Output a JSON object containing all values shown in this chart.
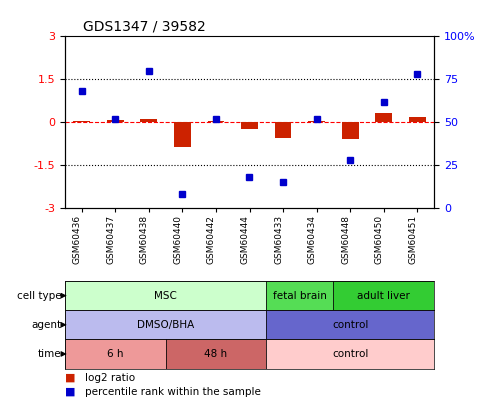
{
  "title": "GDS1347 / 39582",
  "samples": [
    "GSM60436",
    "GSM60437",
    "GSM60438",
    "GSM60440",
    "GSM60442",
    "GSM60444",
    "GSM60433",
    "GSM60434",
    "GSM60448",
    "GSM60450",
    "GSM60451"
  ],
  "log2_ratio": [
    0.05,
    0.07,
    0.12,
    -0.85,
    0.04,
    -0.25,
    -0.55,
    0.04,
    -0.58,
    0.32,
    0.18
  ],
  "percentile_rank": [
    68,
    52,
    80,
    8,
    52,
    18,
    15,
    52,
    28,
    62,
    78
  ],
  "bar_color": "#cc2200",
  "dot_color": "#0000cc",
  "ylim_left": [
    -3,
    3
  ],
  "ylim_right": [
    0,
    100
  ],
  "yticks_left": [
    -3,
    -1.5,
    0,
    1.5,
    3
  ],
  "yticks_right": [
    0,
    25,
    50,
    75,
    100
  ],
  "cell_type_groups": [
    {
      "label": "MSC",
      "start": 0,
      "end": 6,
      "color": "#ccffcc"
    },
    {
      "label": "fetal brain",
      "start": 6,
      "end": 8,
      "color": "#55dd55"
    },
    {
      "label": "adult liver",
      "start": 8,
      "end": 11,
      "color": "#33cc33"
    }
  ],
  "agent_groups": [
    {
      "label": "DMSO/BHA",
      "start": 0,
      "end": 6,
      "color": "#bbbbee"
    },
    {
      "label": "control",
      "start": 6,
      "end": 11,
      "color": "#6666cc"
    }
  ],
  "time_groups": [
    {
      "label": "6 h",
      "start": 0,
      "end": 3,
      "color": "#ee9999"
    },
    {
      "label": "48 h",
      "start": 3,
      "end": 6,
      "color": "#cc6666"
    },
    {
      "label": "control",
      "start": 6,
      "end": 11,
      "color": "#ffcccc"
    }
  ],
  "row_labels": [
    "cell type",
    "agent",
    "time"
  ],
  "legend_red_label": "log2 ratio",
  "legend_blue_label": "percentile rank within the sample"
}
